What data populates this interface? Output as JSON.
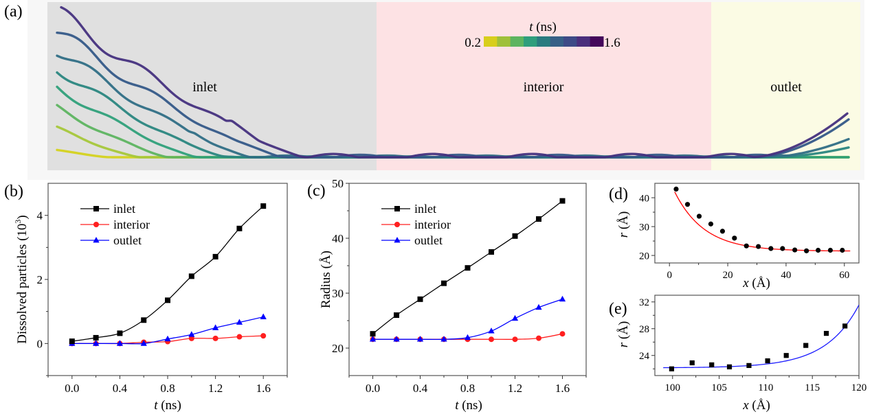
{
  "panel_a": {
    "label": "(a)",
    "regions": [
      {
        "name": "inlet",
        "label": "inlet",
        "color": "#e0e0e0"
      },
      {
        "name": "interior",
        "label": "interior",
        "color": "#fde2e4"
      },
      {
        "name": "outlet",
        "label": "outlet",
        "color": "#fbfbe4"
      }
    ],
    "colorbar": {
      "title_var": "t",
      "title_unit": " (ns)",
      "min_label": "0.2",
      "max_label": "1.6",
      "colors": [
        "#d8ce1c",
        "#9fc03a",
        "#5db460",
        "#2f9e7c",
        "#2a7b7f",
        "#365f86",
        "#3d4a86",
        "#4a2f7c",
        "#44075a"
      ]
    },
    "profiles": [
      {
        "t": 0.2,
        "color": "#d4d21e",
        "inlet_height": 0.05,
        "outlet_height": 0.0
      },
      {
        "t": 0.4,
        "color": "#a5c73a",
        "inlet_height": 0.2,
        "outlet_height": 0.0
      },
      {
        "t": 0.6,
        "color": "#5db460",
        "inlet_height": 0.34,
        "outlet_height": 0.0
      },
      {
        "t": 0.8,
        "color": "#2fa07a",
        "inlet_height": 0.48,
        "outlet_height": 0.0
      },
      {
        "t": 1.0,
        "color": "#2a8680",
        "inlet_height": 0.61,
        "outlet_height": 0.07
      },
      {
        "t": 1.2,
        "color": "#2f6e85",
        "inlet_height": 0.74,
        "outlet_height": 0.13
      },
      {
        "t": 1.4,
        "color": "#345888",
        "inlet_height": 0.87,
        "outlet_height": 0.27
      },
      {
        "t": 1.6,
        "color": "#45307e",
        "inlet_height": 1.0,
        "outlet_height": 0.32
      }
    ]
  },
  "chart_data": [
    {
      "id": "b",
      "type": "line",
      "panel_label": "(b)",
      "title": "",
      "xlabel_var": "t",
      "xlabel_unit": " (ns)",
      "ylabel": "Dissolved particles (10",
      "ylabel_sup": "3",
      "ylabel_end": ")",
      "xlim": [
        -0.2,
        1.8
      ],
      "ylim": [
        -1,
        5
      ],
      "xticks": [
        0.0,
        0.4,
        0.8,
        1.2,
        1.6
      ],
      "xtick_labels": [
        "0.0",
        "0.4",
        "0.8",
        "1.2",
        "1.6"
      ],
      "xminor": [
        0.2,
        0.6,
        1.0,
        1.4
      ],
      "yticks": [
        0,
        2,
        4
      ],
      "ytick_labels": [
        "0",
        "2",
        "4"
      ],
      "yminor": [
        -1,
        1,
        3
      ],
      "legend_position": "top-left",
      "x": [
        0.0,
        0.2,
        0.4,
        0.6,
        0.8,
        1.0,
        1.2,
        1.4,
        1.6
      ],
      "series": [
        {
          "name": "inlet",
          "color": "#000000",
          "marker": "square",
          "values": [
            0.07,
            0.18,
            0.32,
            0.73,
            1.35,
            2.1,
            2.71,
            3.59,
            4.29
          ]
        },
        {
          "name": "interior",
          "color": "#ff1f1f",
          "marker": "circle",
          "values": [
            0.0,
            0.0,
            0.0,
            0.04,
            0.06,
            0.16,
            0.16,
            0.21,
            0.24
          ]
        },
        {
          "name": "outlet",
          "color": "#0000ff",
          "marker": "triangle",
          "values": [
            0.0,
            0.0,
            0.0,
            0.0,
            0.14,
            0.28,
            0.49,
            0.66,
            0.83
          ]
        }
      ]
    },
    {
      "id": "c",
      "type": "line",
      "panel_label": "(c)",
      "title": "",
      "xlabel_var": "t",
      "xlabel_unit": " (ns)",
      "ylabel": "Radius (Å)",
      "xlim": [
        -0.2,
        1.8
      ],
      "ylim": [
        15,
        50
      ],
      "xticks": [
        0.0,
        0.4,
        0.8,
        1.2,
        1.6
      ],
      "xtick_labels": [
        "0.0",
        "0.4",
        "0.8",
        "1.2",
        "1.6"
      ],
      "xminor": [
        0.2,
        0.6,
        1.0,
        1.4
      ],
      "yticks": [
        20,
        30,
        40,
        50
      ],
      "ytick_labels": [
        "20",
        "30",
        "40",
        "50"
      ],
      "yminor": [
        25,
        35,
        45
      ],
      "legend_position": "top-left",
      "x": [
        0.0,
        0.2,
        0.4,
        0.6,
        0.8,
        1.0,
        1.2,
        1.4,
        1.6
      ],
      "series": [
        {
          "name": "inlet",
          "color": "#000000",
          "marker": "square",
          "values": [
            22.6,
            26.0,
            28.9,
            31.8,
            34.6,
            37.5,
            40.4,
            43.5,
            46.8
          ]
        },
        {
          "name": "interior",
          "color": "#ff1f1f",
          "marker": "circle",
          "values": [
            21.6,
            21.6,
            21.6,
            21.6,
            21.6,
            21.6,
            21.6,
            21.8,
            22.6
          ]
        },
        {
          "name": "outlet",
          "color": "#0000ff",
          "marker": "triangle",
          "values": [
            21.6,
            21.6,
            21.6,
            21.6,
            21.9,
            23.1,
            25.4,
            27.4,
            28.9
          ]
        }
      ]
    },
    {
      "id": "d",
      "type": "scatter",
      "panel_label": "(d)",
      "title": "",
      "xlabel_var": "x",
      "xlabel_unit": " (Å)",
      "ylabel_var": "r",
      "ylabel_unit": " (Å)",
      "xlim": [
        -5,
        65
      ],
      "ylim": [
        17.4,
        45
      ],
      "xticks": [
        0,
        20,
        40,
        60
      ],
      "xtick_labels": [
        "0",
        "20",
        "40",
        "60"
      ],
      "xminor": [
        10,
        30,
        50
      ],
      "yticks": [
        20,
        30,
        40
      ],
      "ytick_labels": [
        "20",
        "30",
        "40"
      ],
      "yminor": [
        25,
        35
      ],
      "points_color": "#000000",
      "points_marker": "circle",
      "x": [
        2.3,
        6.2,
        10.2,
        14.2,
        18.2,
        22.3,
        26.4,
        30.5,
        34.8,
        38.8,
        43.0,
        47.0,
        51.0,
        55.2,
        59.3
      ],
      "y": [
        43.0,
        37.7,
        33.6,
        30.9,
        28.4,
        26.0,
        23.3,
        23.1,
        22.4,
        22.4,
        21.9,
        21.6,
        21.8,
        21.8,
        21.8
      ],
      "fit": {
        "type": "exponential-decay",
        "color": "#ff0000",
        "x_range": [
          1.8,
          62
        ],
        "y0": 21.5,
        "A": 24.5,
        "tau": 10.2
      }
    },
    {
      "id": "e",
      "type": "scatter",
      "panel_label": "(e)",
      "title": "",
      "xlabel_var": "x",
      "xlabel_unit": " (Å)",
      "ylabel_var": "r",
      "ylabel_unit": " (Å)",
      "xlim": [
        98.1,
        120
      ],
      "ylim": [
        21,
        33
      ],
      "xticks": [
        100,
        105,
        110,
        115,
        120
      ],
      "xtick_labels": [
        "100",
        "105",
        "110",
        "115",
        "120"
      ],
      "xminor": [
        102.5,
        107.5,
        112.5,
        117.5
      ],
      "yticks": [
        24,
        28,
        32
      ],
      "ytick_labels": [
        "24",
        "28",
        "32"
      ],
      "yminor": [
        22,
        26,
        30
      ],
      "points_color": "#000000",
      "points_marker": "square",
      "x": [
        99.9,
        102.1,
        104.2,
        106.1,
        108.2,
        110.2,
        112.2,
        114.3,
        116.5,
        118.5
      ],
      "y": [
        22.0,
        22.9,
        22.6,
        22.3,
        22.5,
        23.2,
        24.0,
        25.5,
        27.3,
        28.4
      ],
      "fit": {
        "type": "exponential-growth",
        "color": "#1a1aff",
        "x_range": [
          99,
          120
        ],
        "y0": 22.15,
        "A": 9.4,
        "x0": 120,
        "tau": 3.55
      }
    }
  ]
}
